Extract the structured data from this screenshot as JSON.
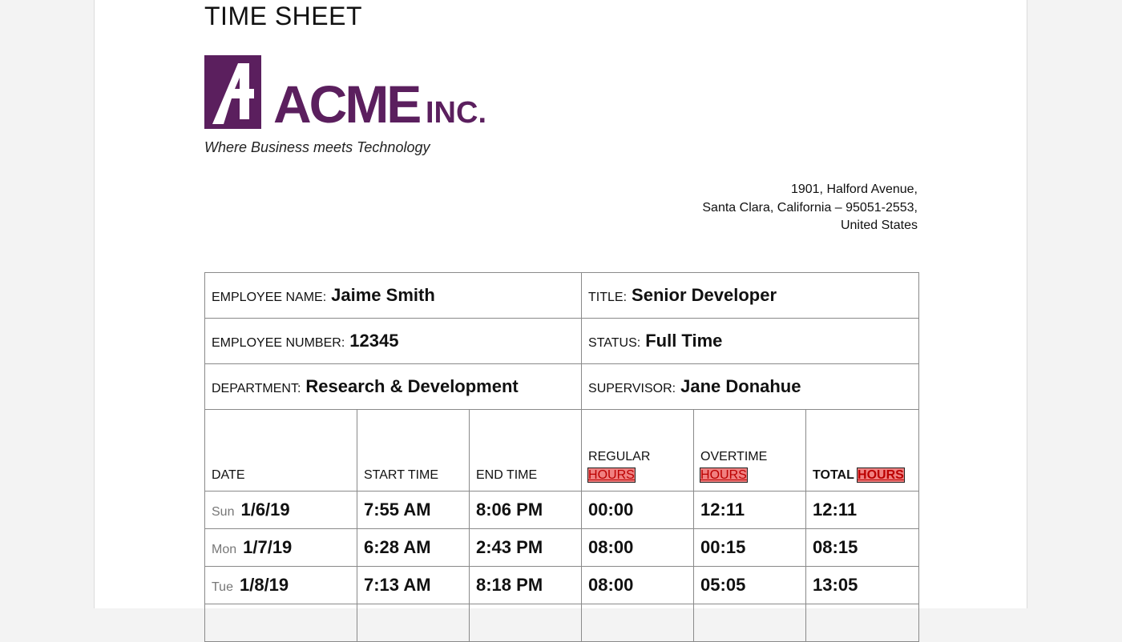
{
  "header": {
    "title": "TIME SHEET",
    "logo": {
      "name": "ACME",
      "suffix": "INC."
    },
    "tagline": "Where Business meets Technology",
    "address": [
      "1901, Halford Avenue,",
      "Santa Clara, California – 95051-2553,",
      "United States"
    ]
  },
  "employee": [
    [
      {
        "label": "EMPLOYEE NAME:",
        "value": "Jaime Smith"
      },
      {
        "label": "TITLE:",
        "value": "Senior Developer"
      }
    ],
    [
      {
        "label": "EMPLOYEE NUMBER:",
        "value": "12345"
      },
      {
        "label": "STATUS:",
        "value": "Full Time"
      }
    ],
    [
      {
        "label": "DEPARTMENT:",
        "value": "Research & Development"
      },
      {
        "label": "SUPERVISOR:",
        "value": "Jane Donahue"
      }
    ]
  ],
  "table": {
    "columns": [
      {
        "label": "DATE"
      },
      {
        "label": "START TIME"
      },
      {
        "label": "END TIME"
      },
      {
        "label": "REGULAR",
        "highlight": "HOURS"
      },
      {
        "label": "OVERTIME",
        "highlight": "HOURS"
      },
      {
        "label": "TOTAL",
        "highlight": "HOURS"
      }
    ],
    "rows": [
      [
        "Sun",
        "1/6/19",
        "7:55 AM",
        "8:06 PM",
        "00:00",
        "12:11",
        "12:11"
      ],
      [
        "Mon",
        "1/7/19",
        "6:28 AM",
        "2:43 PM",
        "08:00",
        "00:15",
        "08:15"
      ],
      [
        "Tue",
        "1/8/19",
        "7:13 AM",
        "8:18 PM",
        "08:00",
        "05:05",
        "13:05"
      ]
    ]
  }
}
